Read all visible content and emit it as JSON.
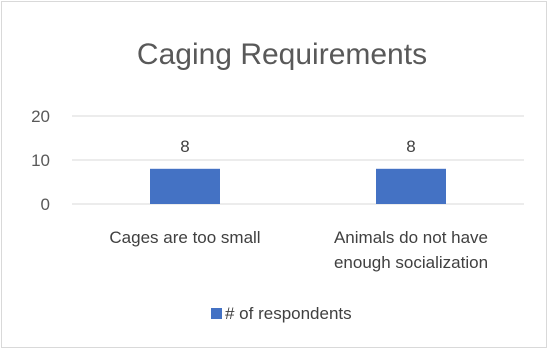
{
  "chart_data": {
    "type": "bar",
    "title": "Caging Requirements",
    "categories": [
      [
        "Cages are too small"
      ],
      [
        "Animals do not have",
        "enough socialization"
      ]
    ],
    "series": [
      {
        "name": "# of respondents",
        "values": [
          8,
          8
        ],
        "color": "#4472C4"
      }
    ],
    "yticks": [
      "0",
      "10",
      "20"
    ],
    "ylim": [
      0,
      20
    ],
    "gridlines": true,
    "legend_position": "bottom",
    "data_labels": [
      "8",
      "8"
    ]
  }
}
